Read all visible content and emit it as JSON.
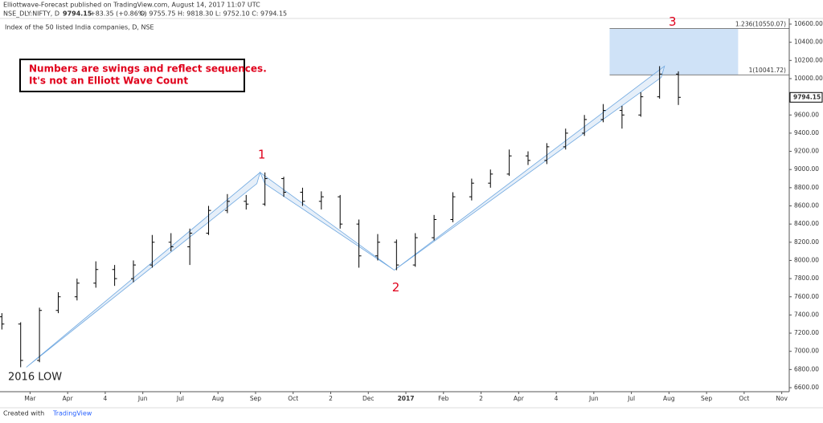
{
  "header": {
    "publisher": "Elliottwave-Forecast published on TradingView.com, August 14, 2017 11:07 UTC",
    "symbol": "NSE_DLY:NIFTY, D",
    "price": "9794.15",
    "change": "+83.35 (+0.86%)",
    "ohlc": "O: 9755.75 H: 9818.30 L: 9752.10 C: 9794.15",
    "footer": "Created with",
    "brand": "TradingView"
  },
  "chart_data": {
    "type": "ohlc",
    "title": "Index of the 50 listed India companies, D, NSE",
    "note": [
      "Numbers are swings and reflect sequences.",
      "It's not an Elliott Wave Count"
    ],
    "color": "#000000",
    "x": [
      -0.75,
      -0.25,
      0.25,
      0.75,
      1.25,
      1.75,
      2.25,
      2.75,
      3.25,
      3.75,
      4.25,
      4.75,
      5.25,
      5.75,
      6.25,
      6.75,
      7.25,
      7.75,
      8.25,
      8.75,
      9.25,
      9.75,
      10.25,
      10.75,
      11.25,
      11.75,
      12.25,
      12.75,
      13.25,
      13.75,
      14.25,
      14.75,
      15.25,
      15.75,
      16.25,
      16.75,
      17.25
    ],
    "open": [
      7380,
      7300,
      6900,
      7450,
      7600,
      7750,
      7900,
      7800,
      7950,
      8200,
      8150,
      8300,
      8550,
      8650,
      8620,
      8900,
      8750,
      8650,
      8700,
      8400,
      8050,
      8200,
      7950,
      8250,
      8450,
      8700,
      8850,
      8950,
      9150,
      9100,
      9250,
      9400,
      9550,
      9650,
      9600,
      9800,
      10050
    ],
    "high": [
      7420,
      7320,
      7480,
      7650,
      7800,
      7990,
      7950,
      8000,
      8280,
      8300,
      8350,
      8600,
      8730,
      8720,
      8968,
      8920,
      8800,
      8760,
      8720,
      8450,
      8290,
      8230,
      8300,
      8500,
      8750,
      8900,
      9000,
      9220,
      9200,
      9290,
      9450,
      9600,
      9720,
      9700,
      9850,
      10137,
      10080
    ],
    "low": [
      7240,
      6825,
      6880,
      7420,
      7560,
      7700,
      7720,
      7760,
      7920,
      8100,
      7950,
      8280,
      8520,
      8560,
      8600,
      8700,
      8600,
      8560,
      8350,
      7920,
      8000,
      7893,
      7930,
      8220,
      8420,
      8660,
      8800,
      8930,
      9050,
      9060,
      9220,
      9370,
      9520,
      9450,
      9580,
      9780,
      9710
    ],
    "close": [
      7300,
      6900,
      7450,
      7600,
      7750,
      7900,
      7800,
      7950,
      8200,
      8150,
      8300,
      8550,
      8650,
      8620,
      8900,
      8750,
      8650,
      8700,
      8400,
      8050,
      8200,
      7950,
      8250,
      8450,
      8700,
      8850,
      8950,
      9150,
      9100,
      9250,
      9400,
      9550,
      9650,
      9600,
      9800,
      10050,
      9794.15
    ],
    "swings": [
      {
        "text": "2016 LOW",
        "x": -0.1,
        "y": 6825
      },
      {
        "text": "1",
        "x": 6.12,
        "y": 8968
      },
      {
        "text": "2",
        "x": 9.69,
        "y": 7893
      },
      {
        "text": "3",
        "x": 16.88,
        "y": 10137
      }
    ],
    "fib": {
      "x": [
        15.42,
        18.84
      ],
      "levels": [
        {
          "value": 10550.07,
          "label": "1.236(10550.07)"
        },
        {
          "value": 10041.72,
          "label": "1(10041.72)"
        }
      ]
    },
    "xlim": [
      -0.8,
      20.2
    ],
    "ylim": [
      6600,
      10600
    ],
    "xticks": [
      {
        "value": 0,
        "label": "Mar"
      },
      {
        "value": 1,
        "label": "Apr"
      },
      {
        "value": 2,
        "label": "4"
      },
      {
        "value": 3,
        "label": "Jun"
      },
      {
        "value": 4,
        "label": "Jul"
      },
      {
        "value": 5,
        "label": "Aug"
      },
      {
        "value": 6,
        "label": "Sep"
      },
      {
        "value": 7,
        "label": "Oct"
      },
      {
        "value": 8,
        "label": "2"
      },
      {
        "value": 9,
        "label": "Dec"
      },
      {
        "value": 10,
        "label": "2017"
      },
      {
        "value": 11,
        "label": "Feb"
      },
      {
        "value": 12,
        "label": "2"
      },
      {
        "value": 13,
        "label": "Apr"
      },
      {
        "value": 14,
        "label": "4"
      },
      {
        "value": 15,
        "label": "Jun"
      },
      {
        "value": 16,
        "label": "Jul"
      },
      {
        "value": 17,
        "label": "Aug"
      },
      {
        "value": 18,
        "label": "Sep"
      },
      {
        "value": 19,
        "label": "Oct"
      },
      {
        "value": 20,
        "label": "Nov"
      }
    ],
    "yticks": [
      {
        "value": 6600,
        "label": "6600.00"
      },
      {
        "value": 6800,
        "label": "6800.00"
      },
      {
        "value": 7000,
        "label": "7000.00"
      },
      {
        "value": 7200,
        "label": "7200.00"
      },
      {
        "value": 7400,
        "label": "7400.00"
      },
      {
        "value": 7600,
        "label": "7600.00"
      },
      {
        "value": 7800,
        "label": "7800.00"
      },
      {
        "value": 8000,
        "label": "8000.00"
      },
      {
        "value": 8200,
        "label": "8200.00"
      },
      {
        "value": 8400,
        "label": "8400.00"
      },
      {
        "value": 8600,
        "label": "8600.00"
      },
      {
        "value": 8800,
        "label": "8800.00"
      },
      {
        "value": 9000,
        "label": "9000.00"
      },
      {
        "value": 9200,
        "label": "9200.00"
      },
      {
        "value": 9400,
        "label": "9400.00"
      },
      {
        "value": 9600,
        "label": "9600.00"
      },
      {
        "value": 9800,
        "label": "9800.00"
      },
      {
        "value": 10000,
        "label": "10000.00"
      },
      {
        "value": 10200,
        "label": "10200.00"
      },
      {
        "value": 10400,
        "label": "10400.00"
      },
      {
        "value": 10600,
        "label": "10600.00"
      }
    ]
  }
}
